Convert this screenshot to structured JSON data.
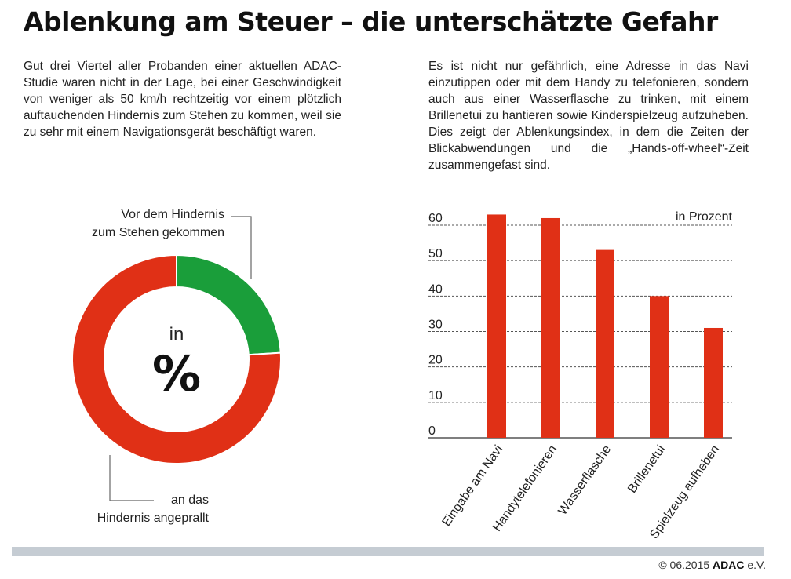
{
  "page": {
    "title": "Ablenkung am Steuer – die unterschätzte Gefahr",
    "left_text": "Gut drei Viertel aller Probanden einer aktuellen ADAC-Studie waren nicht in der Lage, bei einer Geschwindigkeit von weniger als 50 km/h rechtzeitig vor einem plötzlich auftauchenden Hindernis zum Stehen zu kommen, weil sie zu sehr mit einem Navigationsgerät beschäftigt waren.",
    "right_text": "Es ist nicht nur gefährlich, eine Adresse in das Navi einzutippen oder mit dem Handy zu telefonieren, sondern auch aus einer Wasserflasche zu trinken, mit einem Brillenetui zu hantieren sowie Kinderspielzeug aufzuheben. Dies zeigt der Ablenkungsindex, in dem die Zeiten der Blickabwendungen und die „Hands-off-wheel“-Zeit zusammengefast sind.",
    "footer_copyright": "© 06.2015",
    "footer_brand": "ADAC",
    "footer_suffix": "e.V."
  },
  "colors": {
    "red": "#e03016",
    "green": "#1a9e3a",
    "grid": "#555555",
    "footer_bar": "#c5ccd3"
  },
  "chart_data": [
    {
      "type": "pie",
      "style": "donut",
      "center_label_top": "in",
      "center_label_main": "%",
      "slices": [
        {
          "label": "Vor dem Hindernis zum Stehen gekommen",
          "label_lines": [
            "Vor dem Hindernis",
            "zum Stehen gekommen"
          ],
          "value": 24,
          "color": "#1a9e3a"
        },
        {
          "label": "an das Hindernis angeprallt",
          "label_lines": [
            "an das",
            "Hindernis angeprallt"
          ],
          "value": 76,
          "color": "#e03016"
        }
      ]
    },
    {
      "type": "bar",
      "unit_label": "in Prozent",
      "categories": [
        "Eingabe am Navi",
        "Handytelefonieren",
        "Wasserflasche",
        "Brillenetui",
        "Spielzeug aufheben"
      ],
      "values": [
        63,
        62,
        53,
        40,
        31
      ],
      "ylim": [
        0,
        60
      ],
      "yticks": [
        0,
        10,
        20,
        30,
        40,
        50,
        60
      ],
      "grid": true,
      "color": "#e03016"
    }
  ]
}
